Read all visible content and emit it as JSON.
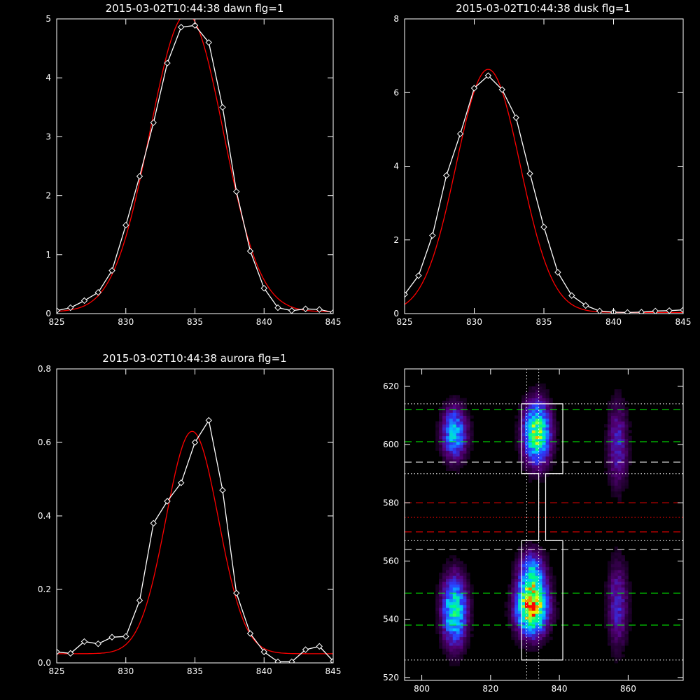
{
  "chart_data": [
    {
      "type": "line",
      "title": "2015-03-02T10:44:38 dawn flg=1",
      "xlim": [
        825,
        845
      ],
      "ylim": [
        0,
        5
      ],
      "xticks": [
        825,
        830,
        835,
        840,
        845
      ],
      "yticks": [
        0,
        1,
        2,
        3,
        4,
        5
      ],
      "series": [
        {
          "style": "data",
          "color": "#ffffff",
          "marker": "diamond",
          "x": [
            825,
            826,
            827,
            828,
            829,
            830,
            831,
            832,
            833,
            834,
            835,
            836,
            837,
            838,
            839,
            840,
            841,
            842,
            843,
            844,
            845
          ],
          "y": [
            0.05,
            0.1,
            0.22,
            0.36,
            0.73,
            1.5,
            2.33,
            3.24,
            4.25,
            4.86,
            4.89,
            4.6,
            3.5,
            2.07,
            1.06,
            0.43,
            0.1,
            0.05,
            0.08,
            0.07,
            0.02
          ]
        },
        {
          "style": "fit",
          "color": "#ff0000",
          "gaussian": {
            "amplitude": 5.05,
            "center": 834.4,
            "sigma": 2.65,
            "offset": 0.03
          }
        }
      ]
    },
    {
      "type": "line",
      "title": "2015-03-02T10:44:38 dusk flg=1",
      "xlim": [
        825,
        845
      ],
      "ylim": [
        0,
        8
      ],
      "xticks": [
        825,
        830,
        835,
        840,
        845
      ],
      "yticks": [
        0,
        2,
        4,
        6,
        8
      ],
      "series": [
        {
          "style": "data",
          "color": "#ffffff",
          "marker": "diamond",
          "x": [
            825,
            826,
            827,
            828,
            829,
            830,
            831,
            832,
            833,
            834,
            835,
            836,
            837,
            838,
            839,
            840,
            841,
            842,
            843,
            844,
            845
          ],
          "y": [
            0.52,
            1.03,
            2.12,
            3.75,
            4.88,
            6.12,
            6.46,
            6.08,
            5.32,
            3.8,
            2.35,
            1.12,
            0.49,
            0.22,
            0.07,
            0.04,
            0.03,
            0.04,
            0.07,
            0.08,
            0.1
          ]
        },
        {
          "style": "fit",
          "color": "#ff0000",
          "gaussian": {
            "amplitude": 6.6,
            "center": 831.0,
            "sigma": 2.3,
            "offset": 0.03
          }
        }
      ]
    },
    {
      "type": "line",
      "title": "2015-03-02T10:44:38 aurora flg=1",
      "xlim": [
        825,
        845
      ],
      "ylim": [
        0,
        0.8
      ],
      "xticks": [
        825,
        830,
        835,
        840,
        845
      ],
      "yticks": [
        0.0,
        0.2,
        0.4,
        0.6,
        0.8
      ],
      "ytick_labels": [
        "0.0",
        "0.2",
        "0.4",
        "0.6",
        "0.8"
      ],
      "series": [
        {
          "style": "data",
          "color": "#ffffff",
          "marker": "diamond",
          "x": [
            825,
            826,
            827,
            828,
            829,
            830,
            831,
            832,
            833,
            834,
            835,
            836,
            837,
            838,
            839,
            840,
            841,
            842,
            843,
            844,
            845
          ],
          "y": [
            0.03,
            0.026,
            0.058,
            0.052,
            0.07,
            0.072,
            0.17,
            0.38,
            0.44,
            0.49,
            0.6,
            0.66,
            0.47,
            0.19,
            0.08,
            0.03,
            0.003,
            0.003,
            0.036,
            0.045,
            0.005
          ]
        },
        {
          "style": "fit",
          "color": "#ff0000",
          "gaussian": {
            "amplitude": 0.605,
            "center": 834.8,
            "sigma": 1.9,
            "offset": 0.025
          }
        }
      ]
    },
    {
      "type": "heatmap",
      "xlim": [
        795,
        876
      ],
      "ylim": [
        519,
        626
      ],
      "xticks": [
        800,
        820,
        840,
        860
      ],
      "yticks": [
        520,
        540,
        560,
        580,
        600,
        620
      ],
      "colormap": [
        "#000000",
        "#55007a",
        "#2b3cff",
        "#00c8ff",
        "#00ff80",
        "#e6ff00",
        "#ff0000"
      ],
      "sources": [
        {
          "x": 809.5,
          "y": 604,
          "sx": 2.4,
          "sy": 6,
          "peak": 0.5
        },
        {
          "x": 809.5,
          "y": 543,
          "sx": 2.4,
          "sy": 8,
          "peak": 0.62
        },
        {
          "x": 833.5,
          "y": 604,
          "sx": 2.6,
          "sy": 7,
          "peak": 0.75
        },
        {
          "x": 832,
          "y": 544,
          "sx": 3.0,
          "sy": 6,
          "peak": 0.98
        },
        {
          "x": 832,
          "y": 556,
          "sx": 2.5,
          "sy": 5,
          "peak": 0.45
        },
        {
          "x": 857,
          "y": 600,
          "sx": 2.0,
          "sy": 10,
          "peak": 0.25
        },
        {
          "x": 857,
          "y": 545,
          "sx": 2.0,
          "sy": 10,
          "peak": 0.26
        }
      ],
      "boxes": [
        {
          "color": "#ffffff",
          "style": "solid",
          "points": [
            [
              829,
              614
            ],
            [
              841,
              614
            ],
            [
              841,
              590
            ],
            [
              836,
              590
            ],
            [
              836,
              567
            ],
            [
              841,
              567
            ],
            [
              841,
              526
            ],
            [
              829,
              526
            ],
            [
              829,
              567
            ],
            [
              834,
              567
            ],
            [
              834,
              590
            ],
            [
              829,
              590
            ]
          ]
        }
      ],
      "hlines": [
        {
          "y": 612,
          "color": "#00ff00",
          "style": "dashed"
        },
        {
          "y": 601,
          "color": "#00ff00",
          "style": "dashed"
        },
        {
          "y": 549,
          "color": "#00ff00",
          "style": "dashed"
        },
        {
          "y": 538,
          "color": "#00ff00",
          "style": "dashed"
        },
        {
          "y": 594,
          "color": "#ffffff",
          "style": "dashed"
        },
        {
          "y": 564,
          "color": "#ffffff",
          "style": "dashed"
        },
        {
          "y": 580,
          "color": "#ff0000",
          "style": "dashed"
        },
        {
          "y": 570,
          "color": "#ff0000",
          "style": "dashed"
        },
        {
          "y": 575,
          "color": "#ff0000",
          "style": "dotted"
        },
        {
          "y": 614,
          "color": "#ffffff",
          "style": "dotted"
        },
        {
          "y": 590,
          "color": "#ffffff",
          "style": "dotted"
        },
        {
          "y": 567,
          "color": "#ffffff",
          "style": "dotted"
        },
        {
          "y": 526,
          "color": "#ffffff",
          "style": "dotted"
        }
      ],
      "vlines": [
        {
          "x": 830.5,
          "color": "#ffffff",
          "style": "dotted"
        },
        {
          "x": 834,
          "color": "#ffffff",
          "style": "dotted"
        }
      ]
    }
  ]
}
